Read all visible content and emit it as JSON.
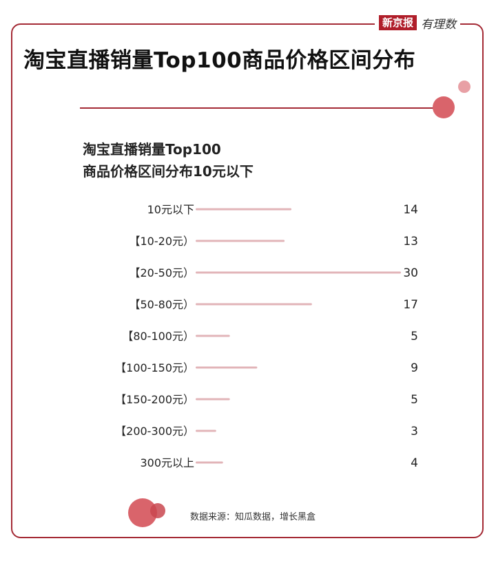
{
  "logo": {
    "brand": "新京报",
    "column": "有理数"
  },
  "title": "淘宝直播销量Top100商品价格区间分布",
  "subtitle_line1": "淘宝直播销量Top100",
  "subtitle_line2": "商品价格区间分布10元以下",
  "source": "数据来源：知瓜数据，增长黑盒",
  "colors": {
    "accent": "#a42a35",
    "dot": "#d9646b",
    "dot_light": "#e8a0a5",
    "bar": "#e2b4b8",
    "text": "#222222"
  },
  "chart_data": {
    "type": "bar",
    "orientation": "horizontal",
    "categories": [
      "10元以下",
      "【10-20元）",
      "【20-50元）",
      "【50-80元）",
      "【80-100元）",
      "【100-150元）",
      "【150-200元）",
      "【200-300元）",
      "300元以上"
    ],
    "values": [
      14,
      13,
      30,
      17,
      5,
      9,
      5,
      3,
      4
    ],
    "xlim": [
      0,
      30
    ],
    "grid": false,
    "legend": "none"
  }
}
